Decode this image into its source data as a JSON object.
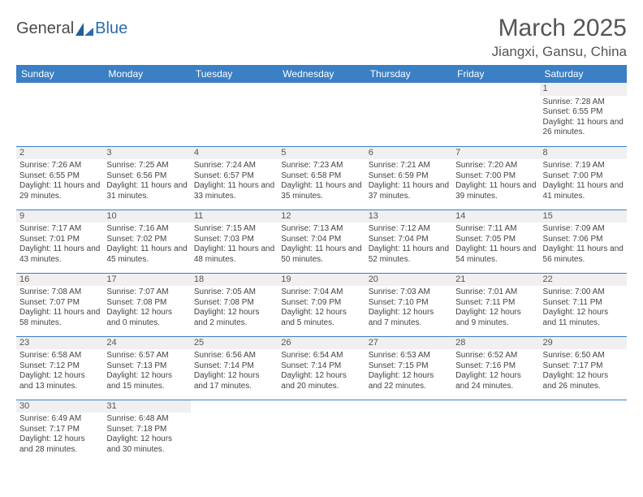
{
  "logo": {
    "part1": "General",
    "part2": "Blue"
  },
  "title": "March 2025",
  "location": "Jiangxi, Gansu, China",
  "header_bg": "#3b7fc4",
  "text_color": "#444444",
  "daynum_bg": "#f0f0f0",
  "weekdays": [
    "Sunday",
    "Monday",
    "Tuesday",
    "Wednesday",
    "Thursday",
    "Friday",
    "Saturday"
  ],
  "weeks": [
    [
      {
        "day": "",
        "sunrise": "",
        "sunset": "",
        "daylight": ""
      },
      {
        "day": "",
        "sunrise": "",
        "sunset": "",
        "daylight": ""
      },
      {
        "day": "",
        "sunrise": "",
        "sunset": "",
        "daylight": ""
      },
      {
        "day": "",
        "sunrise": "",
        "sunset": "",
        "daylight": ""
      },
      {
        "day": "",
        "sunrise": "",
        "sunset": "",
        "daylight": ""
      },
      {
        "day": "",
        "sunrise": "",
        "sunset": "",
        "daylight": ""
      },
      {
        "day": "1",
        "sunrise": "Sunrise: 7:28 AM",
        "sunset": "Sunset: 6:55 PM",
        "daylight": "Daylight: 11 hours and 26 minutes."
      }
    ],
    [
      {
        "day": "2",
        "sunrise": "Sunrise: 7:26 AM",
        "sunset": "Sunset: 6:55 PM",
        "daylight": "Daylight: 11 hours and 29 minutes."
      },
      {
        "day": "3",
        "sunrise": "Sunrise: 7:25 AM",
        "sunset": "Sunset: 6:56 PM",
        "daylight": "Daylight: 11 hours and 31 minutes."
      },
      {
        "day": "4",
        "sunrise": "Sunrise: 7:24 AM",
        "sunset": "Sunset: 6:57 PM",
        "daylight": "Daylight: 11 hours and 33 minutes."
      },
      {
        "day": "5",
        "sunrise": "Sunrise: 7:23 AM",
        "sunset": "Sunset: 6:58 PM",
        "daylight": "Daylight: 11 hours and 35 minutes."
      },
      {
        "day": "6",
        "sunrise": "Sunrise: 7:21 AM",
        "sunset": "Sunset: 6:59 PM",
        "daylight": "Daylight: 11 hours and 37 minutes."
      },
      {
        "day": "7",
        "sunrise": "Sunrise: 7:20 AM",
        "sunset": "Sunset: 7:00 PM",
        "daylight": "Daylight: 11 hours and 39 minutes."
      },
      {
        "day": "8",
        "sunrise": "Sunrise: 7:19 AM",
        "sunset": "Sunset: 7:00 PM",
        "daylight": "Daylight: 11 hours and 41 minutes."
      }
    ],
    [
      {
        "day": "9",
        "sunrise": "Sunrise: 7:17 AM",
        "sunset": "Sunset: 7:01 PM",
        "daylight": "Daylight: 11 hours and 43 minutes."
      },
      {
        "day": "10",
        "sunrise": "Sunrise: 7:16 AM",
        "sunset": "Sunset: 7:02 PM",
        "daylight": "Daylight: 11 hours and 45 minutes."
      },
      {
        "day": "11",
        "sunrise": "Sunrise: 7:15 AM",
        "sunset": "Sunset: 7:03 PM",
        "daylight": "Daylight: 11 hours and 48 minutes."
      },
      {
        "day": "12",
        "sunrise": "Sunrise: 7:13 AM",
        "sunset": "Sunset: 7:04 PM",
        "daylight": "Daylight: 11 hours and 50 minutes."
      },
      {
        "day": "13",
        "sunrise": "Sunrise: 7:12 AM",
        "sunset": "Sunset: 7:04 PM",
        "daylight": "Daylight: 11 hours and 52 minutes."
      },
      {
        "day": "14",
        "sunrise": "Sunrise: 7:11 AM",
        "sunset": "Sunset: 7:05 PM",
        "daylight": "Daylight: 11 hours and 54 minutes."
      },
      {
        "day": "15",
        "sunrise": "Sunrise: 7:09 AM",
        "sunset": "Sunset: 7:06 PM",
        "daylight": "Daylight: 11 hours and 56 minutes."
      }
    ],
    [
      {
        "day": "16",
        "sunrise": "Sunrise: 7:08 AM",
        "sunset": "Sunset: 7:07 PM",
        "daylight": "Daylight: 11 hours and 58 minutes."
      },
      {
        "day": "17",
        "sunrise": "Sunrise: 7:07 AM",
        "sunset": "Sunset: 7:08 PM",
        "daylight": "Daylight: 12 hours and 0 minutes."
      },
      {
        "day": "18",
        "sunrise": "Sunrise: 7:05 AM",
        "sunset": "Sunset: 7:08 PM",
        "daylight": "Daylight: 12 hours and 2 minutes."
      },
      {
        "day": "19",
        "sunrise": "Sunrise: 7:04 AM",
        "sunset": "Sunset: 7:09 PM",
        "daylight": "Daylight: 12 hours and 5 minutes."
      },
      {
        "day": "20",
        "sunrise": "Sunrise: 7:03 AM",
        "sunset": "Sunset: 7:10 PM",
        "daylight": "Daylight: 12 hours and 7 minutes."
      },
      {
        "day": "21",
        "sunrise": "Sunrise: 7:01 AM",
        "sunset": "Sunset: 7:11 PM",
        "daylight": "Daylight: 12 hours and 9 minutes."
      },
      {
        "day": "22",
        "sunrise": "Sunrise: 7:00 AM",
        "sunset": "Sunset: 7:11 PM",
        "daylight": "Daylight: 12 hours and 11 minutes."
      }
    ],
    [
      {
        "day": "23",
        "sunrise": "Sunrise: 6:58 AM",
        "sunset": "Sunset: 7:12 PM",
        "daylight": "Daylight: 12 hours and 13 minutes."
      },
      {
        "day": "24",
        "sunrise": "Sunrise: 6:57 AM",
        "sunset": "Sunset: 7:13 PM",
        "daylight": "Daylight: 12 hours and 15 minutes."
      },
      {
        "day": "25",
        "sunrise": "Sunrise: 6:56 AM",
        "sunset": "Sunset: 7:14 PM",
        "daylight": "Daylight: 12 hours and 17 minutes."
      },
      {
        "day": "26",
        "sunrise": "Sunrise: 6:54 AM",
        "sunset": "Sunset: 7:14 PM",
        "daylight": "Daylight: 12 hours and 20 minutes."
      },
      {
        "day": "27",
        "sunrise": "Sunrise: 6:53 AM",
        "sunset": "Sunset: 7:15 PM",
        "daylight": "Daylight: 12 hours and 22 minutes."
      },
      {
        "day": "28",
        "sunrise": "Sunrise: 6:52 AM",
        "sunset": "Sunset: 7:16 PM",
        "daylight": "Daylight: 12 hours and 24 minutes."
      },
      {
        "day": "29",
        "sunrise": "Sunrise: 6:50 AM",
        "sunset": "Sunset: 7:17 PM",
        "daylight": "Daylight: 12 hours and 26 minutes."
      }
    ],
    [
      {
        "day": "30",
        "sunrise": "Sunrise: 6:49 AM",
        "sunset": "Sunset: 7:17 PM",
        "daylight": "Daylight: 12 hours and 28 minutes."
      },
      {
        "day": "31",
        "sunrise": "Sunrise: 6:48 AM",
        "sunset": "Sunset: 7:18 PM",
        "daylight": "Daylight: 12 hours and 30 minutes."
      },
      {
        "day": "",
        "sunrise": "",
        "sunset": "",
        "daylight": ""
      },
      {
        "day": "",
        "sunrise": "",
        "sunset": "",
        "daylight": ""
      },
      {
        "day": "",
        "sunrise": "",
        "sunset": "",
        "daylight": ""
      },
      {
        "day": "",
        "sunrise": "",
        "sunset": "",
        "daylight": ""
      },
      {
        "day": "",
        "sunrise": "",
        "sunset": "",
        "daylight": ""
      }
    ]
  ]
}
